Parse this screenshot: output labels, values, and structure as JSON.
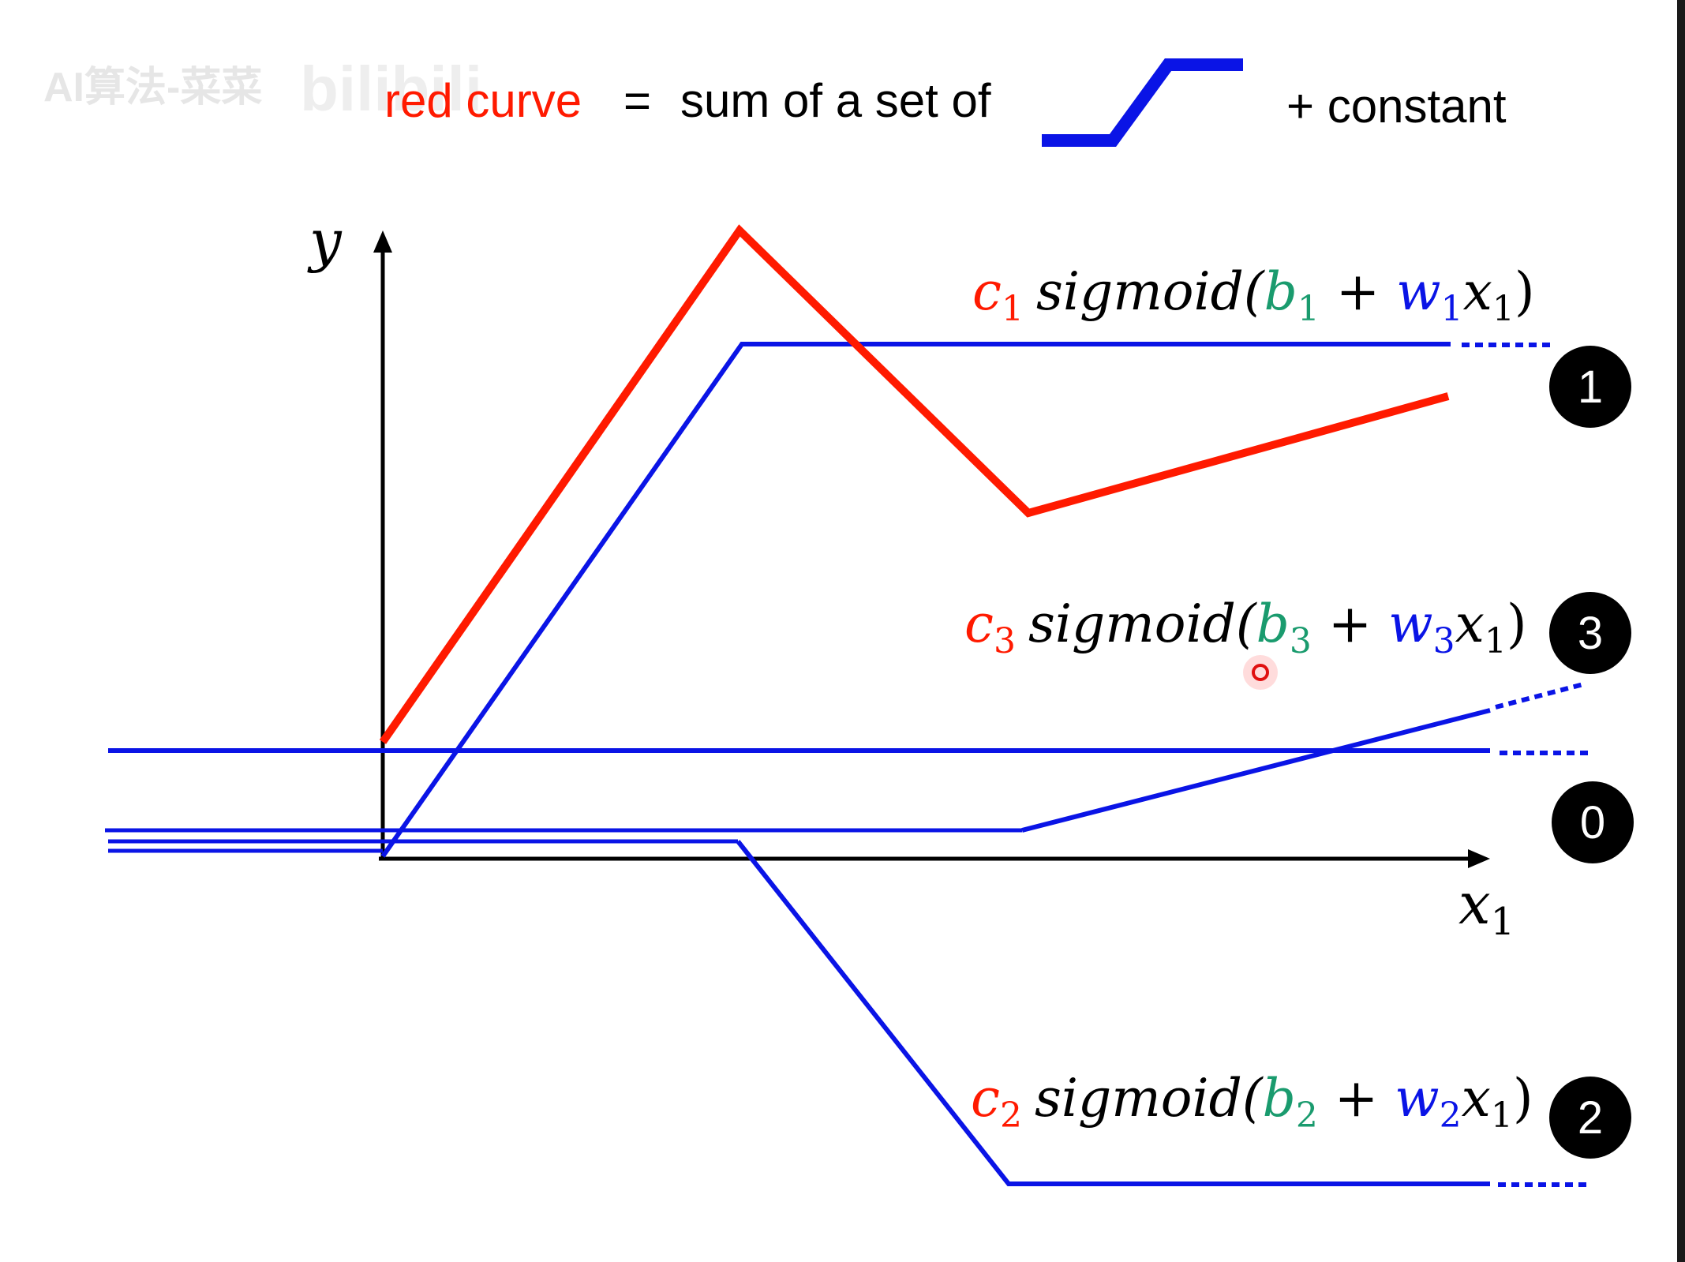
{
  "header": {
    "watermark_text": "AI算法-菜菜",
    "watermark_logo": "bilibili",
    "red_curve_label": "red curve",
    "equals": "=",
    "sum_text": "sum of a set of",
    "constant_text": "+ constant"
  },
  "axes": {
    "y_label": "y",
    "x_label_base": "x",
    "x_label_sub": "1"
  },
  "formulas": [
    {
      "c_sub": "1",
      "b_sub": "1",
      "w_sub": "1",
      "x_sub": "1"
    },
    {
      "c_sub": "3",
      "b_sub": "3",
      "w_sub": "3",
      "x_sub": "1"
    },
    {
      "c_sub": "2",
      "b_sub": "2",
      "w_sub": "2",
      "x_sub": "1"
    }
  ],
  "formula_parts": {
    "c": "c",
    "sigmoid": "sigmoid(",
    "b": "b",
    "plus": " + ",
    "w": "w",
    "x": "x",
    "close": ")"
  },
  "badges": [
    "1",
    "3",
    "0",
    "2"
  ],
  "colors": {
    "red": "#ff1a00",
    "blue": "#0a14e6",
    "green": "#1a9b6e",
    "black": "#000000"
  }
}
